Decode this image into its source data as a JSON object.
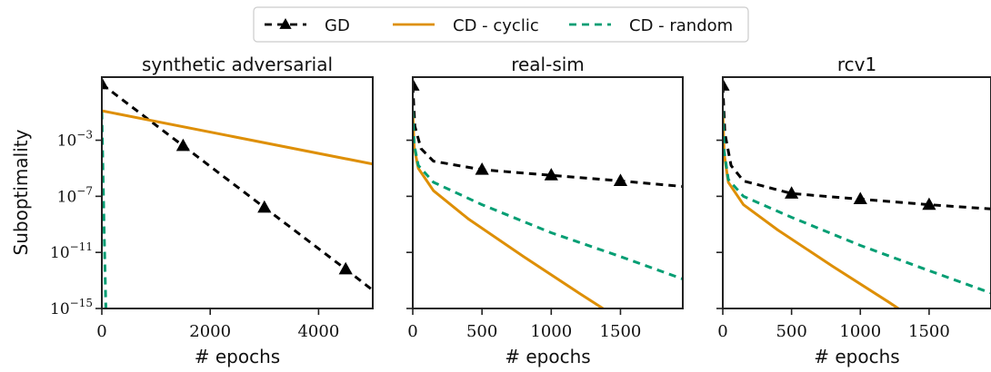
{
  "legend": {
    "placement": "top-center",
    "entries": [
      {
        "label": "GD",
        "color": "#000000",
        "style": "dashed",
        "marker": "triangle"
      },
      {
        "label": "CD - cyclic",
        "color": "#de8f05",
        "style": "solid",
        "marker": ""
      },
      {
        "label": "CD - random",
        "color": "#029e73",
        "style": "dashed",
        "marker": ""
      }
    ]
  },
  "ylabel": "Suboptimality",
  "chart_data": [
    {
      "type": "line",
      "title": "synthetic adversarial",
      "xlabel": "# epochs",
      "ylabel": "Suboptimality",
      "xlim": [
        0,
        5000
      ],
      "ylim_exp": [
        -15,
        1.5
      ],
      "yscale": "log",
      "xticks": [
        {
          "v": 0,
          "label": "0"
        },
        {
          "v": 2000,
          "label": "2000"
        },
        {
          "v": 4000,
          "label": "4000"
        }
      ],
      "yticks": [
        {
          "e": -3,
          "label": "10",
          "exp": "−3"
        },
        {
          "e": -7,
          "label": "10",
          "exp": "−7"
        },
        {
          "e": -11,
          "label": "10",
          "exp": "−11"
        },
        {
          "e": -15,
          "label": "10",
          "exp": "−15"
        }
      ],
      "series": [
        {
          "name": "GD",
          "color": "#000000",
          "dash": "8,6",
          "x_log10y": [
            [
              0,
              1.0
            ],
            [
              1500,
              -3.4
            ],
            [
              3000,
              -7.8
            ],
            [
              4500,
              -12.2
            ],
            [
              5000,
              -13.7
            ]
          ],
          "markers_x": [
            0,
            1500,
            3000,
            4500
          ]
        },
        {
          "name": "CD - cyclic",
          "color": "#de8f05",
          "dash": "",
          "x_log10y": [
            [
              0,
              -0.9
            ],
            [
              5000,
              -4.7
            ]
          ],
          "markers_x": []
        },
        {
          "name": "CD - random",
          "color": "#029e73",
          "dash": "8,6",
          "x_log10y": [
            [
              0,
              -1.0
            ],
            [
              40,
              -9.0
            ],
            [
              80,
              -16.0
            ]
          ],
          "markers_x": []
        }
      ]
    },
    {
      "type": "line",
      "title": "real-sim",
      "xlabel": "# epochs",
      "ylabel": "",
      "xlim": [
        0,
        1950
      ],
      "ylim_exp": [
        -15,
        1.5
      ],
      "yscale": "log",
      "xticks": [
        {
          "v": 0,
          "label": "0"
        },
        {
          "v": 500,
          "label": "500"
        },
        {
          "v": 1000,
          "label": "1000"
        },
        {
          "v": 1500,
          "label": "1500"
        }
      ],
      "yticks": [],
      "series": [
        {
          "name": "GD",
          "color": "#000000",
          "dash": "8,6",
          "x_log10y": [
            [
              0,
              0.9
            ],
            [
              15,
              -2.0
            ],
            [
              60,
              -3.6
            ],
            [
              150,
              -4.5
            ],
            [
              500,
              -5.1
            ],
            [
              1000,
              -5.5
            ],
            [
              1500,
              -5.9
            ],
            [
              1950,
              -6.3
            ]
          ],
          "markers_x": [
            0,
            500,
            1000,
            1500
          ]
        },
        {
          "name": "CD - cyclic",
          "color": "#de8f05",
          "dash": "",
          "x_log10y": [
            [
              0,
              -1.0
            ],
            [
              10,
              -3.5
            ],
            [
              40,
              -5.0
            ],
            [
              150,
              -6.6
            ],
            [
              400,
              -8.6
            ],
            [
              800,
              -11.3
            ],
            [
              1200,
              -13.9
            ],
            [
              1500,
              -15.8
            ]
          ],
          "markers_x": []
        },
        {
          "name": "CD - random",
          "color": "#029e73",
          "dash": "8,6",
          "x_log10y": [
            [
              0,
              -0.9
            ],
            [
              10,
              -3.3
            ],
            [
              40,
              -4.8
            ],
            [
              150,
              -6.0
            ],
            [
              500,
              -7.6
            ],
            [
              1000,
              -9.6
            ],
            [
              1500,
              -11.3
            ],
            [
              1950,
              -12.9
            ]
          ],
          "markers_x": []
        }
      ]
    },
    {
      "type": "line",
      "title": "rcv1",
      "xlabel": "# epochs",
      "ylabel": "",
      "xlim": [
        0,
        1950
      ],
      "ylim_exp": [
        -15,
        1.5
      ],
      "yscale": "log",
      "xticks": [
        {
          "v": 0,
          "label": "0"
        },
        {
          "v": 500,
          "label": "500"
        },
        {
          "v": 1000,
          "label": "1000"
        },
        {
          "v": 1500,
          "label": "1500"
        }
      ],
      "yticks": [],
      "series": [
        {
          "name": "GD",
          "color": "#000000",
          "dash": "8,6",
          "x_log10y": [
            [
              0,
              0.9
            ],
            [
              15,
              -2.5
            ],
            [
              60,
              -4.8
            ],
            [
              150,
              -5.9
            ],
            [
              500,
              -6.8
            ],
            [
              1000,
              -7.2
            ],
            [
              1500,
              -7.6
            ],
            [
              1950,
              -7.9
            ]
          ],
          "markers_x": [
            0,
            500,
            1000,
            1500
          ]
        },
        {
          "name": "CD - cyclic",
          "color": "#de8f05",
          "dash": "",
          "x_log10y": [
            [
              0,
              -1.0
            ],
            [
              10,
              -4.0
            ],
            [
              40,
              -6.0
            ],
            [
              150,
              -7.6
            ],
            [
              400,
              -9.4
            ],
            [
              800,
              -12.0
            ],
            [
              1200,
              -14.5
            ],
            [
              1400,
              -15.8
            ]
          ],
          "markers_x": []
        },
        {
          "name": "CD - random",
          "color": "#029e73",
          "dash": "8,6",
          "x_log10y": [
            [
              0,
              -0.9
            ],
            [
              10,
              -3.8
            ],
            [
              40,
              -5.8
            ],
            [
              150,
              -7.0
            ],
            [
              500,
              -8.5
            ],
            [
              1000,
              -10.5
            ],
            [
              1500,
              -12.3
            ],
            [
              1950,
              -13.9
            ]
          ],
          "markers_x": []
        }
      ]
    }
  ]
}
